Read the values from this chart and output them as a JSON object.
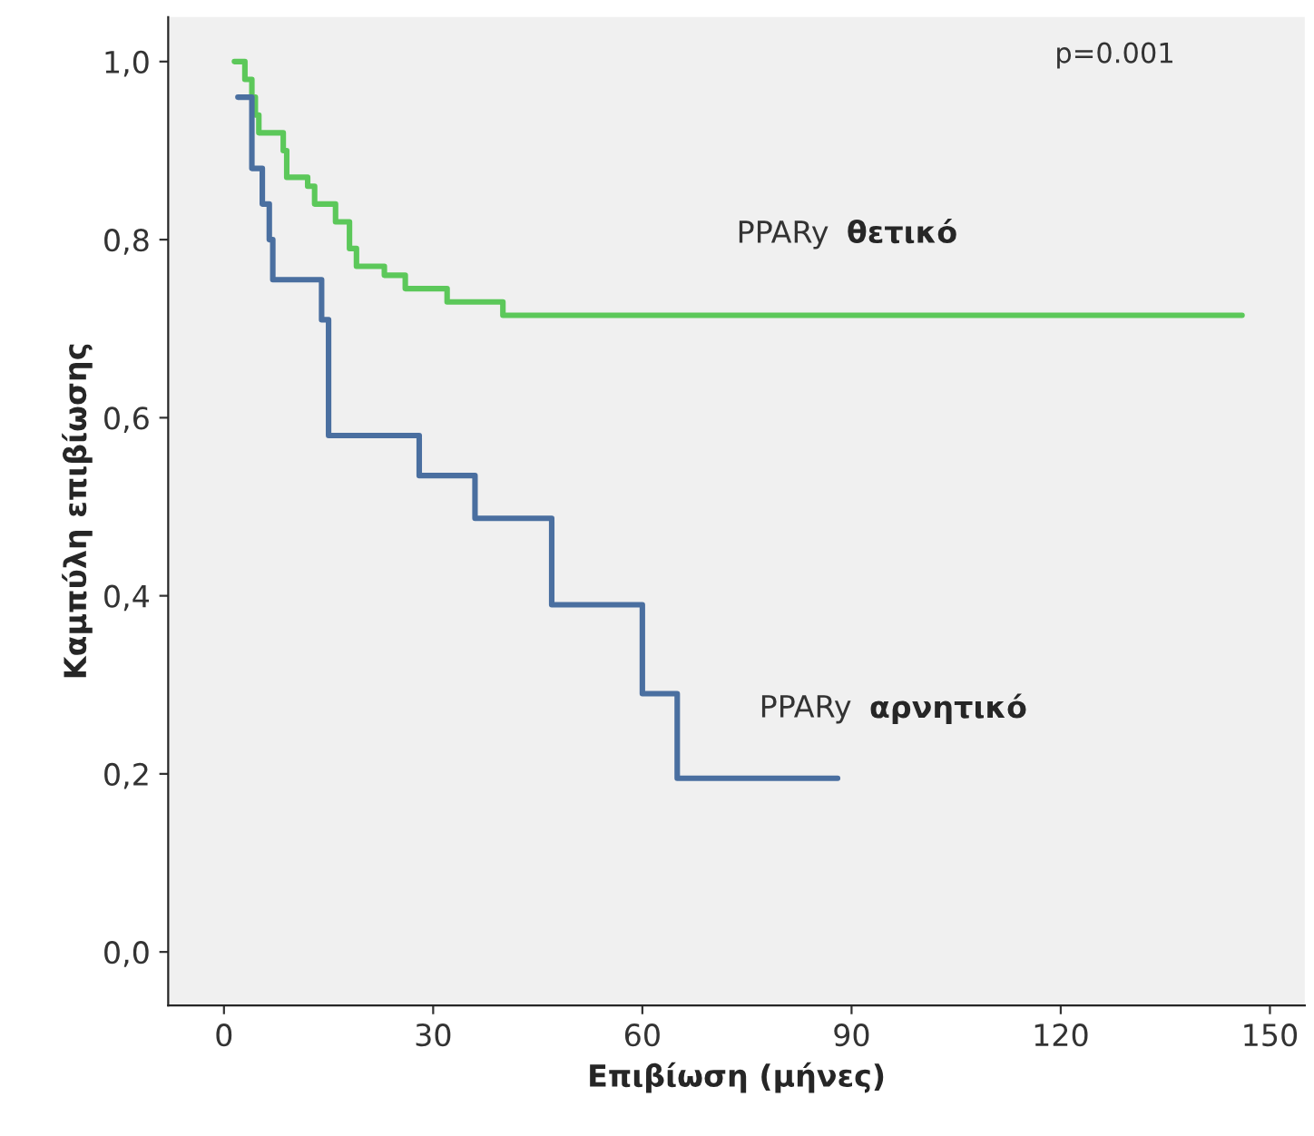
{
  "chart_data": {
    "type": "step",
    "xlabel": "Επιβίωση (μήνες)",
    "ylabel": "Καμπύλη επιβίωσης",
    "annotations": [
      "p=0.001"
    ],
    "series": [
      {
        "name": "PPARy θετικό",
        "color": "#5cc85a",
        "x": [
          1.5,
          3,
          4,
          4.5,
          5,
          8.5,
          9,
          12,
          13,
          16,
          18,
          19,
          23,
          26,
          32,
          40,
          146
        ],
        "values": [
          1.0,
          0.98,
          0.96,
          0.94,
          0.92,
          0.9,
          0.87,
          0.86,
          0.84,
          0.82,
          0.79,
          0.77,
          0.76,
          0.745,
          0.73,
          0.715,
          0.715
        ]
      },
      {
        "name": "PPARy αρνητικό",
        "color": "#4a6fa0",
        "x": [
          2,
          4,
          5.5,
          6.5,
          7,
          14,
          15,
          28,
          36,
          47,
          60,
          65,
          88
        ],
        "values": [
          0.96,
          0.88,
          0.84,
          0.8,
          0.755,
          0.71,
          0.58,
          0.535,
          0.487,
          0.39,
          0.29,
          0.195,
          0.195
        ]
      }
    ],
    "xlim": [
      -8,
      155
    ],
    "ylim": [
      -0.06,
      1.05
    ],
    "xticks": [
      0,
      30,
      60,
      90,
      120,
      150
    ],
    "yticks": [
      {
        "value": 0,
        "label": "0,0"
      },
      {
        "value": 0.2,
        "label": "0,2"
      },
      {
        "value": 0.4,
        "label": "0,4"
      },
      {
        "value": 0.6,
        "label": "0,6"
      },
      {
        "value": 0.8,
        "label": "0,8"
      },
      {
        "value": 1.0,
        "label": "1,0"
      }
    ],
    "grid": false,
    "legend": false
  }
}
